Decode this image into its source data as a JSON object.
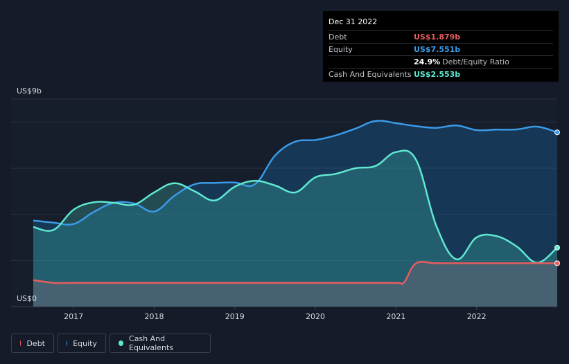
{
  "tooltip": {
    "date": "Dec 31 2022",
    "rows": [
      {
        "label": "Debt",
        "value": "US$1.879b",
        "color": "#e85c5c"
      },
      {
        "label": "Equity",
        "value": "US$7.551b",
        "color": "#3a9be8"
      },
      {
        "label": "",
        "value": "24.9%",
        "sub": "Debt/Equity Ratio",
        "color": "#ffffff"
      },
      {
        "label": "Cash And Equivalents",
        "value": "US$2.553b",
        "color": "#5fe8d2"
      }
    ]
  },
  "legend": [
    {
      "label": "Debt",
      "color": "#e85c5c"
    },
    {
      "label": "Equity",
      "color": "#3a9be8"
    },
    {
      "label": "Cash And Equivalents",
      "color": "#5fe8d2"
    }
  ],
  "chart_data": {
    "type": "area",
    "y_top_label": "US$9b",
    "y_bottom_label": "US$0",
    "ylim": [
      0,
      9
    ],
    "xlim": [
      2016.5,
      2023.0
    ],
    "x_ticks": [
      {
        "value": 2017,
        "label": "2017"
      },
      {
        "value": 2018,
        "label": "2018"
      },
      {
        "value": 2019,
        "label": "2019"
      },
      {
        "value": 2020,
        "label": "2020"
      },
      {
        "value": 2021,
        "label": "2021"
      },
      {
        "value": 2022,
        "label": "2022"
      }
    ],
    "y_grid": [
      2,
      4,
      6,
      8
    ],
    "grid": true,
    "legend_position": "bottom-left",
    "series": [
      {
        "name": "Equity",
        "color": "#3a9be8",
        "points": [
          [
            2016.5,
            3.73
          ],
          [
            2016.75,
            3.64
          ],
          [
            2017.0,
            3.58
          ],
          [
            2017.25,
            4.1
          ],
          [
            2017.5,
            4.5
          ],
          [
            2017.75,
            4.47
          ],
          [
            2018.0,
            4.12
          ],
          [
            2018.25,
            4.8
          ],
          [
            2018.5,
            5.3
          ],
          [
            2018.75,
            5.36
          ],
          [
            2019.0,
            5.38
          ],
          [
            2019.25,
            5.3
          ],
          [
            2019.5,
            6.55
          ],
          [
            2019.75,
            7.15
          ],
          [
            2020.0,
            7.22
          ],
          [
            2020.25,
            7.42
          ],
          [
            2020.5,
            7.72
          ],
          [
            2020.75,
            8.05
          ],
          [
            2021.0,
            7.95
          ],
          [
            2021.25,
            7.82
          ],
          [
            2021.5,
            7.75
          ],
          [
            2021.75,
            7.85
          ],
          [
            2022.0,
            7.65
          ],
          [
            2022.25,
            7.67
          ],
          [
            2022.5,
            7.68
          ],
          [
            2022.75,
            7.8
          ],
          [
            2023.0,
            7.551
          ]
        ]
      },
      {
        "name": "Cash And Equivalents",
        "color": "#5fe8d2",
        "points": [
          [
            2016.5,
            3.45
          ],
          [
            2016.75,
            3.32
          ],
          [
            2017.0,
            4.2
          ],
          [
            2017.25,
            4.52
          ],
          [
            2017.5,
            4.5
          ],
          [
            2017.75,
            4.42
          ],
          [
            2018.0,
            4.95
          ],
          [
            2018.25,
            5.35
          ],
          [
            2018.5,
            5.0
          ],
          [
            2018.75,
            4.6
          ],
          [
            2019.0,
            5.2
          ],
          [
            2019.25,
            5.45
          ],
          [
            2019.5,
            5.25
          ],
          [
            2019.75,
            4.95
          ],
          [
            2020.0,
            5.6
          ],
          [
            2020.25,
            5.75
          ],
          [
            2020.5,
            6.0
          ],
          [
            2020.75,
            6.1
          ],
          [
            2021.0,
            6.7
          ],
          [
            2021.25,
            6.35
          ],
          [
            2021.5,
            3.5
          ],
          [
            2021.75,
            2.05
          ],
          [
            2022.0,
            3.0
          ],
          [
            2022.25,
            3.05
          ],
          [
            2022.5,
            2.6
          ],
          [
            2022.75,
            1.9
          ],
          [
            2023.0,
            2.553
          ]
        ]
      },
      {
        "name": "Debt",
        "color": "#e85c5c",
        "points": [
          [
            2016.5,
            1.15
          ],
          [
            2016.75,
            1.03
          ],
          [
            2017.0,
            1.03
          ],
          [
            2017.5,
            1.03
          ],
          [
            2018.0,
            1.03
          ],
          [
            2018.5,
            1.03
          ],
          [
            2019.0,
            1.03
          ],
          [
            2019.5,
            1.03
          ],
          [
            2020.0,
            1.03
          ],
          [
            2020.5,
            1.03
          ],
          [
            2021.0,
            1.03
          ],
          [
            2021.1,
            1.05
          ],
          [
            2021.25,
            1.879
          ],
          [
            2021.5,
            1.879
          ],
          [
            2022.0,
            1.879
          ],
          [
            2022.5,
            1.879
          ],
          [
            2023.0,
            1.879
          ]
        ]
      }
    ]
  }
}
